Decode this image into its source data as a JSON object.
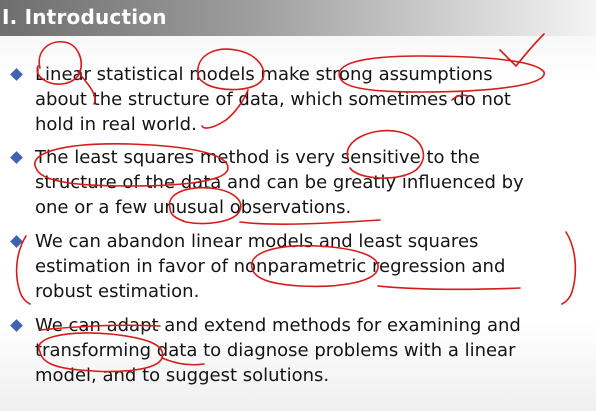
{
  "slide": {
    "title": "I. Introduction",
    "bullets": [
      {
        "lines": [
          "Linear statistical models make strong assumptions",
          "about the structure of data, which sometimes do not",
          "hold in real world."
        ]
      },
      {
        "lines": [
          "The least squares method is very sensitive to the",
          "structure of the data and can be greatly influenced by",
          "one or a few unusual observations."
        ]
      },
      {
        "lines": [
          "We can abandon linear models and least squares",
          "estimation in favor of nonparametric regression and",
          "robust estimation."
        ]
      },
      {
        "lines": [
          "We can adapt and extend methods for examining and",
          "transforming data to diagnose problems with a linear",
          "model, and to suggest solutions."
        ]
      }
    ]
  },
  "colors": {
    "bullet_marker": "#3f62b3",
    "annotation_ink": "#d81a1a"
  }
}
